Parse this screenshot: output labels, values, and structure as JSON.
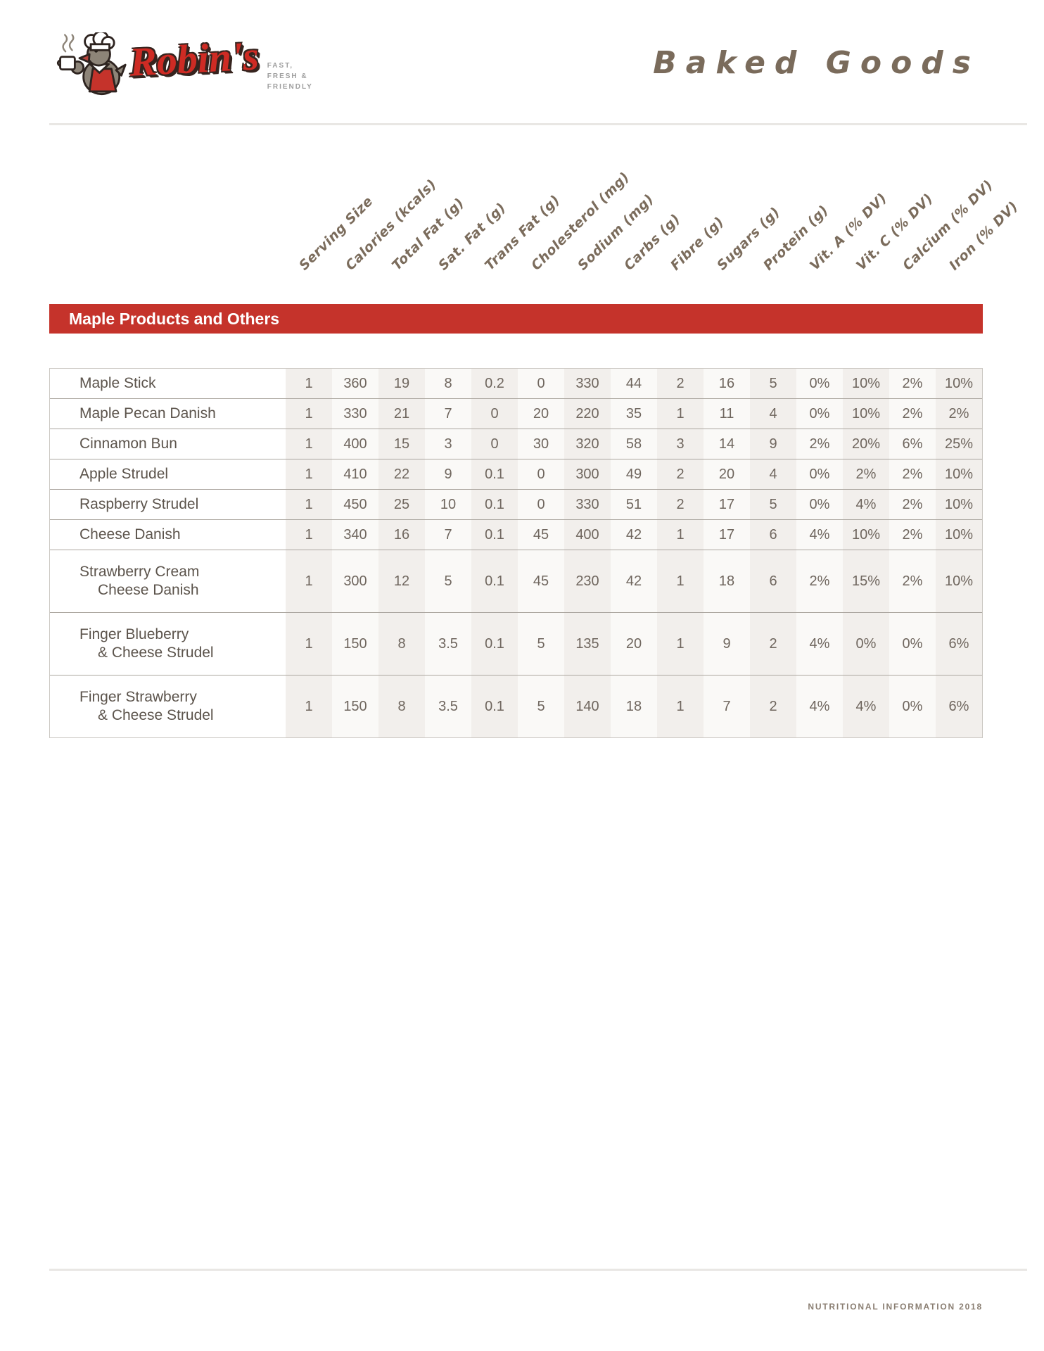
{
  "brand": {
    "name": "Robin's",
    "tagline": [
      "FAST,",
      "FRESH &",
      "FRIENDLY"
    ],
    "mascot": "robin-chef-with-coffee-mug",
    "colors": {
      "brand_red": "#ce2b24",
      "outline_dark": "#36241f",
      "tagline_gray": "#9e9e9e"
    }
  },
  "page": {
    "title": "Baked Goods",
    "title_color": "#7a6b5b",
    "footer": "NUTRITIONAL INFORMATION 2018"
  },
  "table": {
    "section_title": "Maple Products and Others",
    "section_banner_color": "#c5332b",
    "band_color": "#f2efec",
    "columns": [
      "Serving Size",
      "Calories (kcals)",
      "Total Fat (g)",
      "Sat. Fat (g)",
      "Trans Fat (g)",
      "Cholesterol (mg)",
      "Sodium (mg)",
      "Carbs (g)",
      "Fibre (g)",
      "Sugars (g)",
      "Protein (g)",
      "Vit. A (% DV)",
      "Vit. C (% DV)",
      "Calcium (% DV)",
      "Iron (% DV)"
    ],
    "rows": [
      {
        "name_lines": [
          "Maple Stick"
        ],
        "values": [
          "1",
          "360",
          "19",
          "8",
          "0.2",
          "0",
          "330",
          "44",
          "2",
          "16",
          "5",
          "0%",
          "10%",
          "2%",
          "10%"
        ]
      },
      {
        "name_lines": [
          "Maple Pecan Danish"
        ],
        "values": [
          "1",
          "330",
          "21",
          "7",
          "0",
          "20",
          "220",
          "35",
          "1",
          "11",
          "4",
          "0%",
          "10%",
          "2%",
          "2%"
        ]
      },
      {
        "name_lines": [
          "Cinnamon Bun"
        ],
        "values": [
          "1",
          "400",
          "15",
          "3",
          "0",
          "30",
          "320",
          "58",
          "3",
          "14",
          "9",
          "2%",
          "20%",
          "6%",
          "25%"
        ]
      },
      {
        "name_lines": [
          "Apple Strudel"
        ],
        "values": [
          "1",
          "410",
          "22",
          "9",
          "0.1",
          "0",
          "300",
          "49",
          "2",
          "20",
          "4",
          "0%",
          "2%",
          "2%",
          "10%"
        ]
      },
      {
        "name_lines": [
          "Raspberry Strudel"
        ],
        "values": [
          "1",
          "450",
          "25",
          "10",
          "0.1",
          "0",
          "330",
          "51",
          "2",
          "17",
          "5",
          "0%",
          "4%",
          "2%",
          "10%"
        ]
      },
      {
        "name_lines": [
          "Cheese Danish"
        ],
        "values": [
          "1",
          "340",
          "16",
          "7",
          "0.1",
          "45",
          "400",
          "42",
          "1",
          "17",
          "6",
          "4%",
          "10%",
          "2%",
          "10%"
        ]
      },
      {
        "name_lines": [
          "Strawberry Cream",
          "Cheese Danish"
        ],
        "values": [
          "1",
          "300",
          "12",
          "5",
          "0.1",
          "45",
          "230",
          "42",
          "1",
          "18",
          "6",
          "2%",
          "15%",
          "2%",
          "10%"
        ]
      },
      {
        "name_lines": [
          "Finger Blueberry",
          "& Cheese Strudel"
        ],
        "values": [
          "1",
          "150",
          "8",
          "3.5",
          "0.1",
          "5",
          "135",
          "20",
          "1",
          "9",
          "2",
          "4%",
          "0%",
          "0%",
          "6%"
        ]
      },
      {
        "name_lines": [
          "Finger Strawberry",
          "& Cheese Strudel"
        ],
        "values": [
          "1",
          "150",
          "8",
          "3.5",
          "0.1",
          "5",
          "140",
          "18",
          "1",
          "7",
          "2",
          "4%",
          "4%",
          "0%",
          "6%"
        ]
      }
    ]
  }
}
